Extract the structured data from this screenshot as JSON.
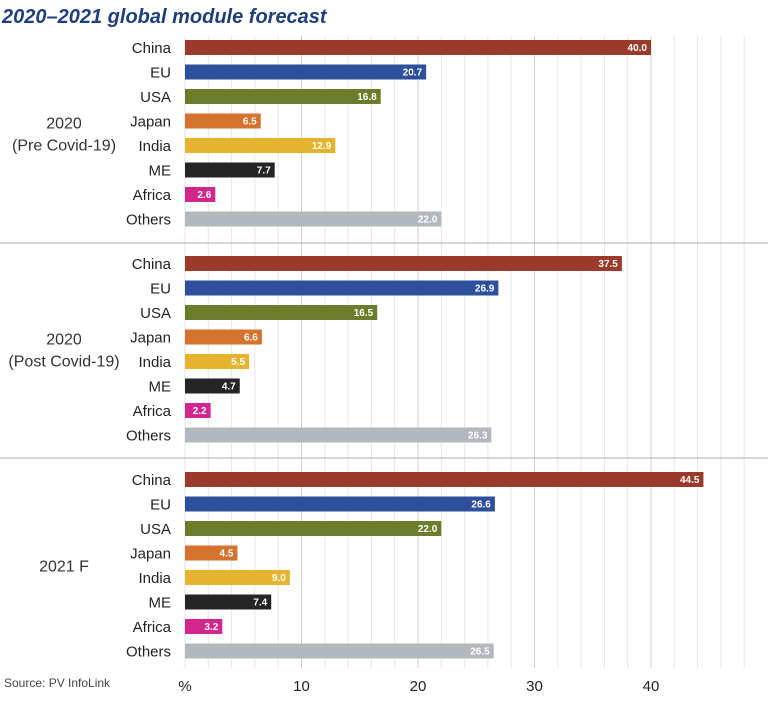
{
  "title": "2020–2021 global module forecast",
  "source": "Source: PV InfoLink",
  "colors": {
    "China": "#9b3a2b",
    "EU": "#2e4f9c",
    "USA": "#6b7d2a",
    "Japan": "#d4722e",
    "India": "#e6b32e",
    "ME": "#252525",
    "Africa": "#d2268c",
    "Others": "#b2b8bf"
  },
  "chart_data": {
    "type": "bar",
    "orientation": "horizontal",
    "categories": [
      "China",
      "EU",
      "USA",
      "Japan",
      "India",
      "ME",
      "Africa",
      "Others"
    ],
    "series": [
      {
        "name": "2020\n(Pre Covid-19)",
        "values": [
          40.0,
          20.7,
          16.8,
          6.5,
          12.9,
          7.7,
          2.6,
          22.0
        ]
      },
      {
        "name": "2020\n(Post Covid-19)",
        "values": [
          37.5,
          26.9,
          16.5,
          6.6,
          5.5,
          4.7,
          2.2,
          26.3
        ]
      },
      {
        "name": "2021 F",
        "values": [
          44.5,
          26.6,
          22.0,
          4.5,
          9.0,
          7.4,
          3.2,
          26.5
        ]
      }
    ],
    "x_unit_label": "%",
    "xticks": [
      10,
      20,
      30,
      40
    ],
    "xlim": [
      0,
      50
    ],
    "grid": true
  }
}
